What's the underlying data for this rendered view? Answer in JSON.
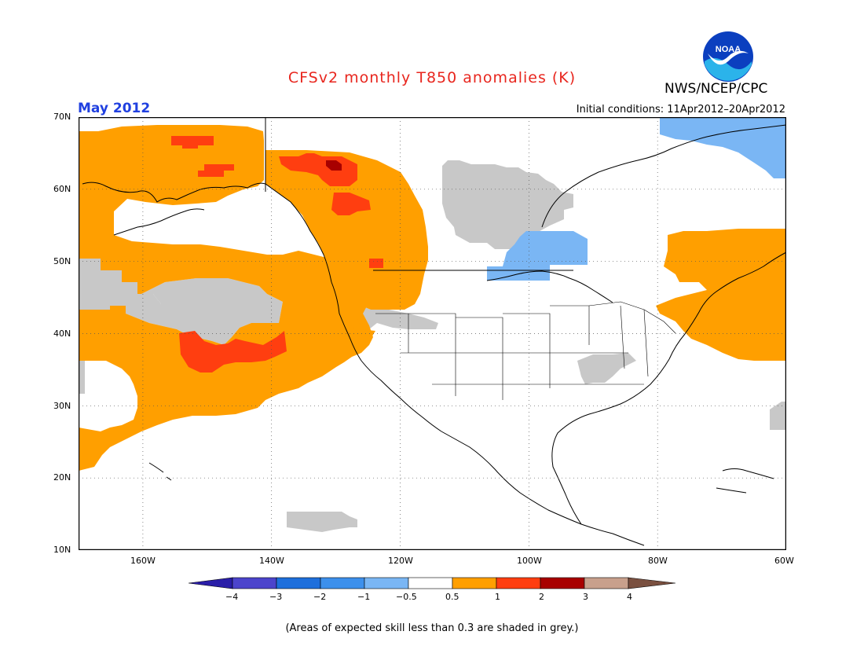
{
  "title": "CFSv2 monthly T850 anomalies (K)",
  "agency": "NWS/NCEP/CPC",
  "logo_text": "NOAA",
  "month": "May 2012",
  "initial_conditions": "Initial conditions: 11Apr2012–20Apr2012",
  "footnote": "(Areas of expected skill less than 0.3 are shaded in grey.)",
  "map": {
    "lat_labels": [
      "70N",
      "60N",
      "50N",
      "40N",
      "30N",
      "20N",
      "10N"
    ],
    "lon_labels": [
      "160W",
      "140W",
      "120W",
      "100W",
      "80W",
      "60W"
    ]
  },
  "colorbar": {
    "labels": [
      "−4",
      "−3",
      "−2",
      "−1",
      "−0.5",
      "0.5",
      "1",
      "2",
      "3",
      "4"
    ],
    "colors": [
      "#2a1ea8",
      "#4c44cc",
      "#1e6fdc",
      "#3d90ec",
      "#7ab6f4",
      "#ffffff",
      "#ff9f00",
      "#ff3e10",
      "#a80000",
      "#c8a08c",
      "#7a5040"
    ]
  },
  "colors": {
    "skill_grey": "#c8c8c8",
    "anomaly_orange": "#ff9f00",
    "anomaly_red": "#ff3e10",
    "anomaly_darkred": "#a80000",
    "anomaly_lightblue": "#7ab6f4"
  }
}
